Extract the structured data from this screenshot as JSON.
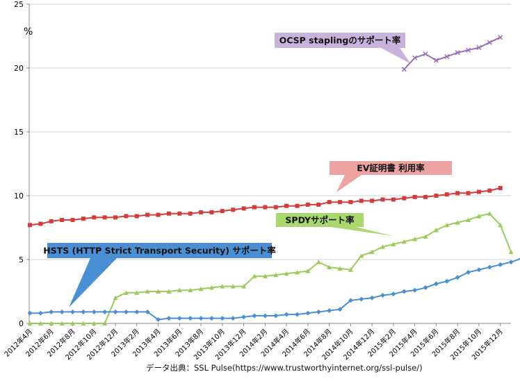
{
  "chart_data": {
    "type": "line",
    "ylabel": "%",
    "ylim": [
      0,
      25
    ],
    "y_ticks": [
      "0",
      "5",
      "10",
      "15",
      "20",
      "25"
    ],
    "grid": "horizontal",
    "x_tick_labels": [
      "2012年4月",
      "2012年6月",
      "2012年8月",
      "2012年10月",
      "2012年12月",
      "2013年2月",
      "2013年4月",
      "2013年6月",
      "2013年8月",
      "2013年10月",
      "2013年12月",
      "2014年2月",
      "2014年4月",
      "2014年6月",
      "2014年8月",
      "2014年10月",
      "2014年12月",
      "2015年2月",
      "2015年4月",
      "2015年6月",
      "2015年8月",
      "2015年10月",
      "2015年12月"
    ],
    "series": [
      {
        "name": "OCSP staplingのサポート率",
        "color": "#9b6fb8",
        "marker": "x",
        "start_index": 35,
        "values": [
          19.9,
          20.8,
          21.1,
          20.6,
          20.9,
          21.2,
          21.4,
          21.6,
          22.0,
          22.4
        ]
      },
      {
        "name": "EV証明書 利用率",
        "color": "#d23c3c",
        "marker": "square",
        "start_index": 0,
        "values": [
          7.7,
          7.8,
          8.0,
          8.1,
          8.1,
          8.2,
          8.3,
          8.3,
          8.3,
          8.4,
          8.4,
          8.5,
          8.5,
          8.6,
          8.6,
          8.6,
          8.7,
          8.7,
          8.8,
          8.9,
          9.0,
          9.1,
          9.1,
          9.1,
          9.2,
          9.2,
          9.3,
          9.3,
          9.5,
          9.5,
          9.5,
          9.6,
          9.6,
          9.7,
          9.7,
          9.8,
          9.9,
          9.9,
          10.0,
          10.1,
          10.2,
          10.2,
          10.3,
          10.4,
          10.6
        ]
      },
      {
        "name": "SPDYサポート率",
        "color": "#9acc5a",
        "marker": "triangle",
        "start_index": 0,
        "values": [
          0.0,
          0.0,
          0.0,
          0.0,
          0.0,
          0.0,
          0.0,
          0.0,
          2.0,
          2.4,
          2.4,
          2.5,
          2.5,
          2.5,
          2.6,
          2.6,
          2.7,
          2.8,
          2.9,
          2.9,
          2.9,
          3.7,
          3.7,
          3.8,
          3.9,
          4.0,
          4.1,
          4.8,
          4.4,
          4.3,
          4.2,
          5.3,
          5.6,
          6.0,
          6.2,
          6.4,
          6.6,
          6.8,
          7.3,
          7.7,
          7.9,
          8.1,
          8.4,
          8.6,
          7.7,
          5.6
        ]
      },
      {
        "name": "HSTS (HTTP Strict Transport Security) サポート率",
        "color": "#4a8fd4",
        "marker": "diamond",
        "start_index": 0,
        "values": [
          0.8,
          0.8,
          0.9,
          0.9,
          0.9,
          0.9,
          0.9,
          0.9,
          0.9,
          0.9,
          0.9,
          0.9,
          0.3,
          0.4,
          0.4,
          0.4,
          0.4,
          0.4,
          0.4,
          0.4,
          0.5,
          0.6,
          0.6,
          0.6,
          0.7,
          0.7,
          0.8,
          0.9,
          1.0,
          1.1,
          1.8,
          1.9,
          2.0,
          2.2,
          2.3,
          2.5,
          2.6,
          2.8,
          3.1,
          3.3,
          3.6,
          4.0,
          4.2,
          4.4,
          4.6,
          4.8,
          5.1
        ]
      }
    ],
    "annotations": [
      {
        "text": "OCSP staplingのサポート率",
        "fill": "#c9b3dd",
        "series_index": 0
      },
      {
        "text": "EV証明書 利用率",
        "fill": "#eea3a3",
        "series_index": 1
      },
      {
        "text": "SPDYサポート率",
        "fill": "#a8d86e",
        "series_index": 2
      },
      {
        "text": "HSTS (HTTP Strict Transport Security) サポート率",
        "fill": "#4a8fd4",
        "series_index": 3
      }
    ],
    "source": "データ出典：SSL Pulse(https://www.trustworthyinternet.org/ssl-pulse/)"
  }
}
